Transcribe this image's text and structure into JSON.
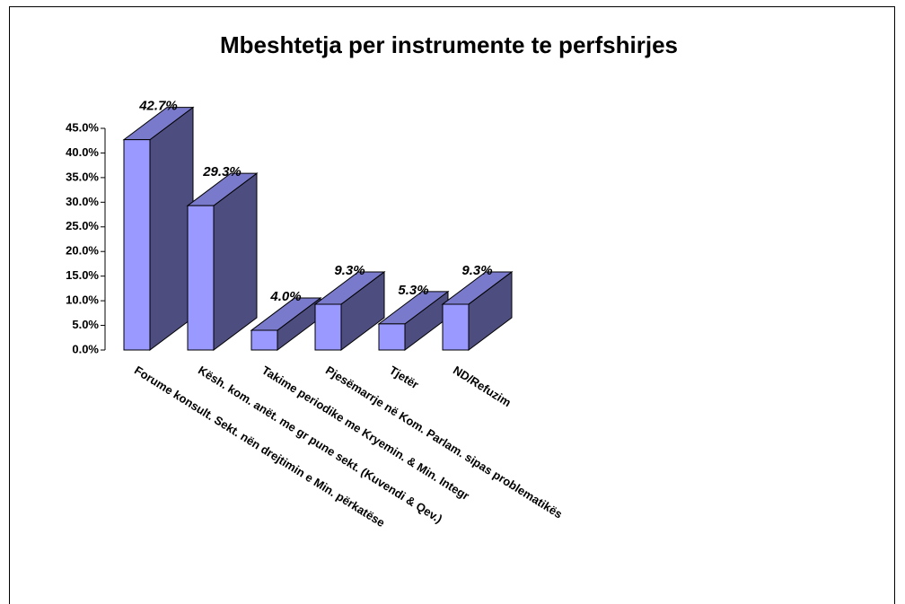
{
  "chart_data": {
    "type": "bar3d",
    "title": "Mbeshtetja per instrumente te perfshirjes",
    "categories": [
      "Forume konsult. Sekt. nën drejtimin e Min. përkatëse",
      "Kësh. kom. anët. me gr pune sekt. (Kuvendi & Qev.)",
      "Takime periodike me Kryemin. & Min. Integr",
      "Pjesëmarrje në Kom. Parlam. sipas problematikës",
      "Tjetër",
      "ND/Refuzim"
    ],
    "values": [
      42.7,
      29.3,
      4.0,
      9.3,
      5.3,
      9.3
    ],
    "value_labels": [
      "42.7%",
      "29.3%",
      "4.0%",
      "9.3%",
      "5.3%",
      "9.3%"
    ],
    "color": "#9999ff",
    "ylim": [
      0,
      45
    ],
    "yticks": [
      {
        "value": 0,
        "label": "0.0%"
      },
      {
        "value": 5,
        "label": "5.0%"
      },
      {
        "value": 10,
        "label": "10.0%"
      },
      {
        "value": 15,
        "label": "15.0%"
      },
      {
        "value": 20,
        "label": "20.0%"
      },
      {
        "value": 25,
        "label": "25.0%"
      },
      {
        "value": 30,
        "label": "30.0%"
      },
      {
        "value": 35,
        "label": "35.0%"
      },
      {
        "value": 40,
        "label": "40.0%"
      },
      {
        "value": 45,
        "label": "45.0%"
      }
    ]
  }
}
